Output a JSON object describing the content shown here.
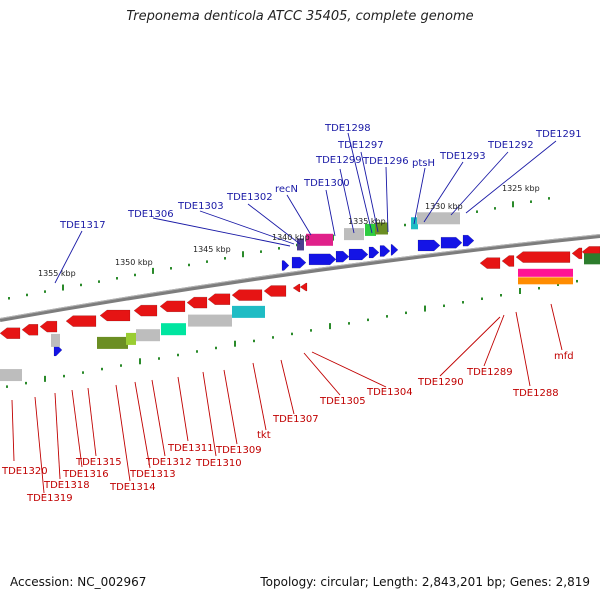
{
  "title": "Treponema denticola ATCC 35405, complete genome",
  "accession": "Accession: NC_002967",
  "summary": "Topology: circular; Length: 2,843,201 bp; Genes: 2,819",
  "colors": {
    "backbone": "#7a7a7a",
    "tick": "#2a8a2a",
    "forward_gene": "#1414e6",
    "reverse_gene": "#e61414",
    "forward_label": "#1a1aa6",
    "reverse_label": "#c00000"
  },
  "scale_labels": [
    {
      "text": "1355 kbp"
    },
    {
      "text": "1350 kbp"
    },
    {
      "text": "1345 kbp"
    },
    {
      "text": "1340 kbp"
    },
    {
      "text": "1335 kbp"
    },
    {
      "text": "1330 kbp"
    },
    {
      "text": "1325 kbp"
    }
  ],
  "top_labels": [
    {
      "text": "TDE1317"
    },
    {
      "text": "TDE1306"
    },
    {
      "text": "TDE1303"
    },
    {
      "text": "TDE1302"
    },
    {
      "text": "recN"
    },
    {
      "text": "TDE1300"
    },
    {
      "text": "TDE1299"
    },
    {
      "text": "TDE1298"
    },
    {
      "text": "TDE1297"
    },
    {
      "text": "TDE1296"
    },
    {
      "text": "ptsH"
    },
    {
      "text": "TDE1293"
    },
    {
      "text": "TDE1292"
    },
    {
      "text": "TDE1291"
    }
  ],
  "bottom_labels": [
    {
      "text": "TDE1320"
    },
    {
      "text": "TDE1319"
    },
    {
      "text": "TDE1318"
    },
    {
      "text": "TDE1316"
    },
    {
      "text": "TDE1315"
    },
    {
      "text": "TDE1314"
    },
    {
      "text": "TDE1313"
    },
    {
      "text": "TDE1312"
    },
    {
      "text": "TDE1311"
    },
    {
      "text": "TDE1310"
    },
    {
      "text": "TDE1309"
    },
    {
      "text": "tkt"
    },
    {
      "text": "TDE1307"
    },
    {
      "text": "TDE1305"
    },
    {
      "text": "TDE1304"
    },
    {
      "text": "TDE1290"
    },
    {
      "text": "TDE1289"
    },
    {
      "text": "TDE1288"
    },
    {
      "text": "mfd"
    }
  ]
}
